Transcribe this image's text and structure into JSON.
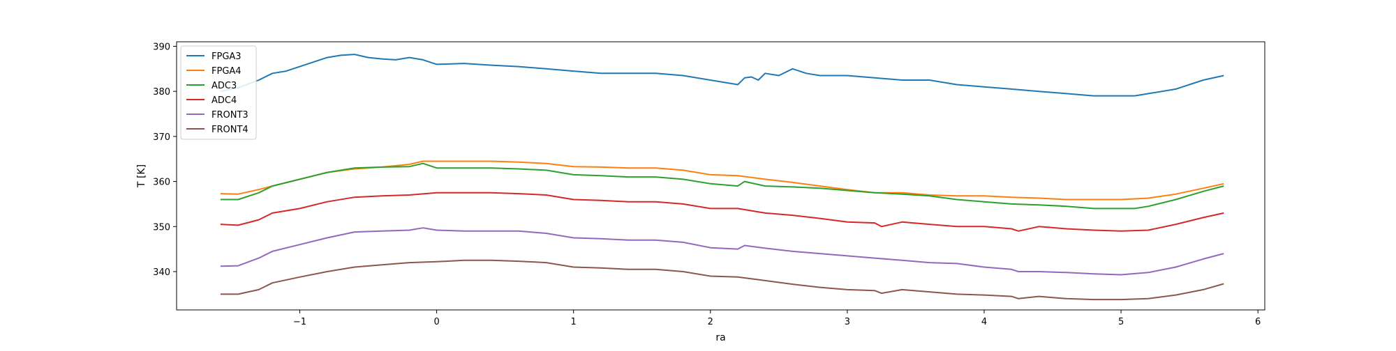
{
  "chart_data": {
    "type": "line",
    "title": "",
    "xlabel": "ra",
    "ylabel": "T [K]",
    "xlim": [
      -1.9,
      6.05
    ],
    "ylim": [
      331.5,
      391.0
    ],
    "xticks": [
      -1,
      0,
      1,
      2,
      3,
      4,
      5,
      6
    ],
    "yticks": [
      340,
      350,
      360,
      370,
      380,
      390
    ],
    "grid": false,
    "legend": "top-left",
    "series": [
      {
        "name": "FPGA3",
        "color": "#1f77b4",
        "x": [
          -1.58,
          -1.45,
          -1.3,
          -1.2,
          -1.1,
          -1.0,
          -0.9,
          -0.8,
          -0.7,
          -0.6,
          -0.5,
          -0.4,
          -0.3,
          -0.2,
          -0.1,
          0.0,
          0.2,
          0.4,
          0.6,
          0.8,
          1.0,
          1.2,
          1.4,
          1.6,
          1.8,
          2.0,
          2.2,
          2.25,
          2.3,
          2.35,
          2.4,
          2.5,
          2.6,
          2.7,
          2.8,
          3.0,
          3.2,
          3.4,
          3.6,
          3.8,
          4.0,
          4.2,
          4.4,
          4.6,
          4.8,
          5.0,
          5.1,
          5.2,
          5.4,
          5.6,
          5.75
        ],
        "y": [
          380.0,
          380.8,
          382.5,
          384.0,
          384.5,
          385.5,
          386.5,
          387.5,
          388.0,
          388.2,
          387.5,
          387.2,
          387.0,
          387.5,
          387.0,
          386.0,
          386.2,
          385.8,
          385.5,
          385.0,
          384.5,
          384.0,
          384.0,
          384.0,
          383.5,
          382.5,
          381.5,
          383.0,
          383.2,
          382.5,
          384.0,
          383.5,
          385.0,
          384.0,
          383.5,
          383.5,
          383.0,
          382.5,
          382.5,
          381.5,
          381.0,
          380.5,
          380.0,
          379.5,
          379.0,
          379.0,
          379.0,
          379.5,
          380.5,
          382.5,
          383.5
        ]
      },
      {
        "name": "FPGA4",
        "color": "#ff7f0e",
        "x": [
          -1.58,
          -1.45,
          -1.3,
          -1.2,
          -1.0,
          -0.8,
          -0.6,
          -0.4,
          -0.2,
          -0.1,
          0.0,
          0.2,
          0.4,
          0.6,
          0.8,
          1.0,
          1.2,
          1.4,
          1.6,
          1.8,
          2.0,
          2.2,
          2.4,
          2.6,
          2.8,
          3.0,
          3.2,
          3.4,
          3.6,
          3.8,
          4.0,
          4.2,
          4.4,
          4.6,
          4.8,
          5.0,
          5.2,
          5.4,
          5.6,
          5.75
        ],
        "y": [
          357.3,
          357.2,
          358.2,
          359.0,
          360.5,
          362.0,
          362.8,
          363.2,
          363.8,
          364.5,
          364.5,
          364.5,
          364.5,
          364.3,
          364.0,
          363.3,
          363.2,
          363.0,
          363.0,
          362.5,
          361.5,
          361.3,
          360.5,
          359.8,
          359.0,
          358.2,
          357.5,
          357.5,
          357.0,
          356.8,
          356.8,
          356.5,
          356.3,
          356.0,
          356.0,
          356.0,
          356.3,
          357.2,
          358.5,
          359.5
        ]
      },
      {
        "name": "ADC3",
        "color": "#2ca02c",
        "x": [
          -1.58,
          -1.45,
          -1.3,
          -1.2,
          -1.0,
          -0.8,
          -0.6,
          -0.4,
          -0.2,
          -0.1,
          0.0,
          0.2,
          0.4,
          0.6,
          0.8,
          1.0,
          1.2,
          1.4,
          1.6,
          1.8,
          2.0,
          2.2,
          2.25,
          2.4,
          2.6,
          2.8,
          3.0,
          3.2,
          3.4,
          3.6,
          3.8,
          4.0,
          4.2,
          4.4,
          4.6,
          4.8,
          5.0,
          5.1,
          5.2,
          5.4,
          5.6,
          5.75
        ],
        "y": [
          356.0,
          356.0,
          357.5,
          359.0,
          360.5,
          362.0,
          363.0,
          363.2,
          363.3,
          364.0,
          363.0,
          363.0,
          363.0,
          362.8,
          362.5,
          361.5,
          361.3,
          361.0,
          361.0,
          360.5,
          359.5,
          359.0,
          360.0,
          359.0,
          358.8,
          358.5,
          358.0,
          357.5,
          357.2,
          356.8,
          356.0,
          355.5,
          355.0,
          354.8,
          354.5,
          354.0,
          354.0,
          354.0,
          354.5,
          356.0,
          357.8,
          359.0
        ]
      },
      {
        "name": "ADC4",
        "color": "#d62728",
        "x": [
          -1.58,
          -1.45,
          -1.3,
          -1.2,
          -1.0,
          -0.8,
          -0.6,
          -0.4,
          -0.2,
          0.0,
          0.2,
          0.4,
          0.6,
          0.8,
          1.0,
          1.2,
          1.4,
          1.6,
          1.8,
          2.0,
          2.2,
          2.4,
          2.6,
          2.8,
          3.0,
          3.2,
          3.25,
          3.4,
          3.6,
          3.8,
          4.0,
          4.2,
          4.25,
          4.4,
          4.6,
          4.8,
          5.0,
          5.2,
          5.4,
          5.6,
          5.75
        ],
        "y": [
          350.5,
          350.3,
          351.5,
          353.0,
          354.0,
          355.5,
          356.5,
          356.8,
          357.0,
          357.5,
          357.5,
          357.5,
          357.3,
          357.0,
          356.0,
          355.8,
          355.5,
          355.5,
          355.0,
          354.0,
          354.0,
          353.0,
          352.5,
          351.8,
          351.0,
          350.8,
          350.0,
          351.0,
          350.5,
          350.0,
          350.0,
          349.5,
          349.0,
          350.0,
          349.5,
          349.2,
          349.0,
          349.2,
          350.5,
          352.0,
          353.0
        ]
      },
      {
        "name": "FRONT3",
        "color": "#9467bd",
        "x": [
          -1.58,
          -1.45,
          -1.3,
          -1.2,
          -1.0,
          -0.8,
          -0.6,
          -0.4,
          -0.2,
          -0.1,
          0.0,
          0.2,
          0.4,
          0.6,
          0.8,
          1.0,
          1.2,
          1.4,
          1.6,
          1.8,
          2.0,
          2.2,
          2.25,
          2.4,
          2.6,
          2.8,
          3.0,
          3.2,
          3.4,
          3.6,
          3.8,
          4.0,
          4.2,
          4.25,
          4.4,
          4.6,
          4.8,
          5.0,
          5.2,
          5.4,
          5.6,
          5.75
        ],
        "y": [
          341.2,
          341.3,
          343.0,
          344.5,
          346.0,
          347.5,
          348.8,
          349.0,
          349.2,
          349.7,
          349.2,
          349.0,
          349.0,
          349.0,
          348.5,
          347.5,
          347.3,
          347.0,
          347.0,
          346.5,
          345.3,
          345.0,
          345.8,
          345.2,
          344.5,
          344.0,
          343.5,
          343.0,
          342.5,
          342.0,
          341.8,
          341.0,
          340.5,
          340.0,
          340.0,
          339.8,
          339.5,
          339.3,
          339.8,
          341.0,
          342.8,
          344.0
        ]
      },
      {
        "name": "FRONT4",
        "color": "#8c564b",
        "x": [
          -1.58,
          -1.45,
          -1.3,
          -1.2,
          -1.0,
          -0.8,
          -0.6,
          -0.4,
          -0.2,
          0.0,
          0.2,
          0.4,
          0.6,
          0.8,
          1.0,
          1.2,
          1.4,
          1.6,
          1.8,
          2.0,
          2.2,
          2.4,
          2.6,
          2.8,
          3.0,
          3.2,
          3.25,
          3.4,
          3.6,
          3.8,
          4.0,
          4.2,
          4.25,
          4.4,
          4.6,
          4.8,
          5.0,
          5.2,
          5.4,
          5.6,
          5.75
        ],
        "y": [
          335.0,
          335.0,
          336.0,
          337.5,
          338.8,
          340.0,
          341.0,
          341.5,
          342.0,
          342.2,
          342.5,
          342.5,
          342.3,
          342.0,
          341.0,
          340.8,
          340.5,
          340.5,
          340.0,
          339.0,
          338.8,
          338.0,
          337.2,
          336.5,
          336.0,
          335.8,
          335.2,
          336.0,
          335.5,
          335.0,
          334.8,
          334.5,
          334.0,
          334.5,
          334.0,
          333.8,
          333.8,
          334.0,
          334.8,
          336.0,
          337.3
        ]
      }
    ]
  }
}
